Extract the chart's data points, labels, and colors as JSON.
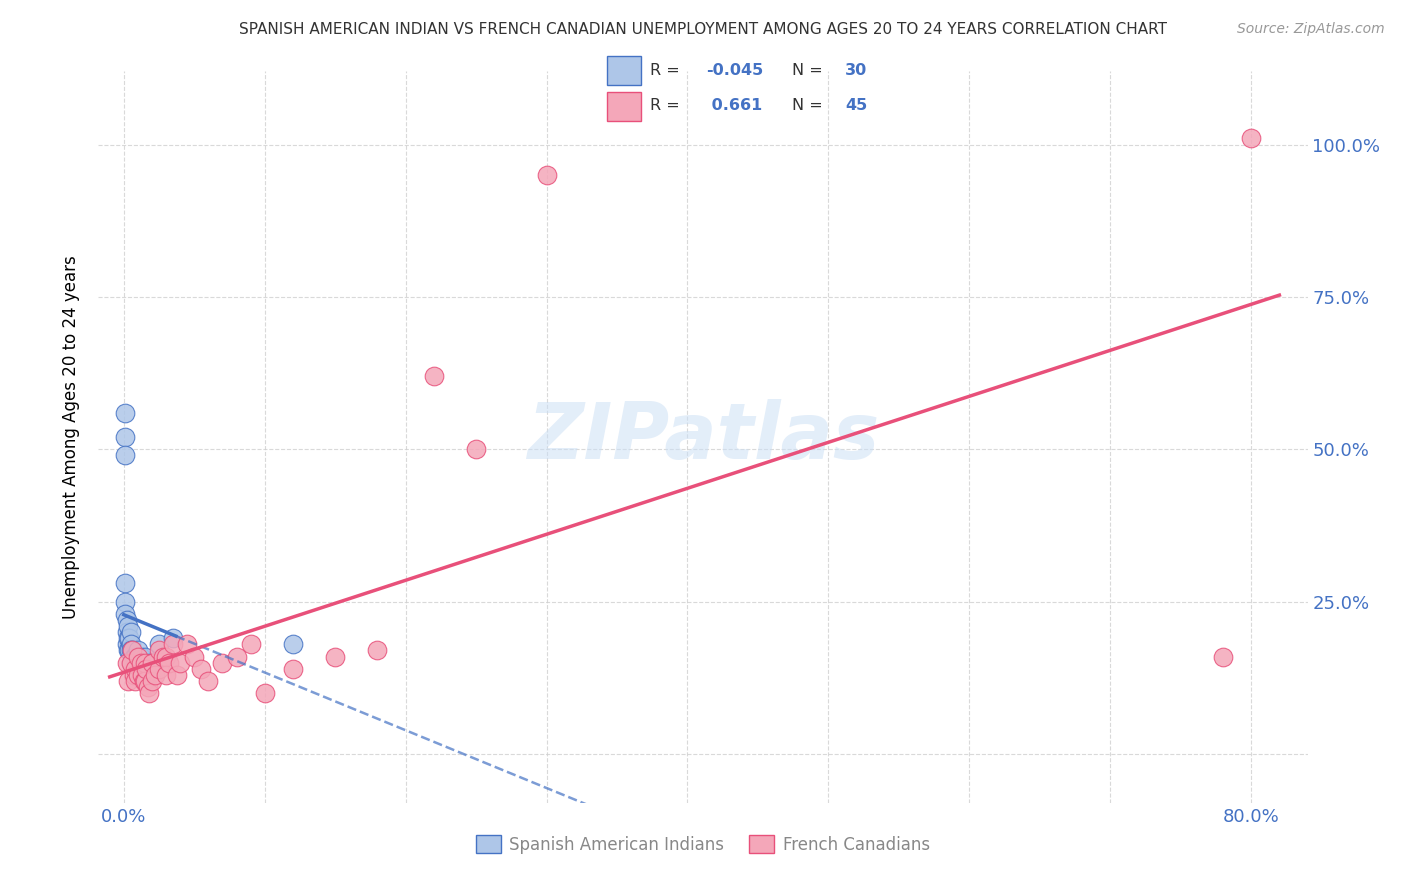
{
  "title": "SPANISH AMERICAN INDIAN VS FRENCH CANADIAN UNEMPLOYMENT AMONG AGES 20 TO 24 YEARS CORRELATION CHART",
  "source": "Source: ZipAtlas.com",
  "accent_color": "#4472c4",
  "ylabel": "Unemployment Among Ages 20 to 24 years",
  "xlim": [
    -0.018,
    0.84
  ],
  "ylim": [
    -0.08,
    1.12
  ],
  "xtick_positions": [
    0.0,
    0.1,
    0.2,
    0.3,
    0.4,
    0.5,
    0.6,
    0.7,
    0.8
  ],
  "xtick_labels": [
    "0.0%",
    "",
    "",
    "",
    "",
    "",
    "",
    "",
    "80.0%"
  ],
  "ytick_positions": [
    0.0,
    0.25,
    0.5,
    0.75,
    1.0
  ],
  "ytick_labels_right": [
    "",
    "25.0%",
    "50.0%",
    "75.0%",
    "100.0%"
  ],
  "blue_scatter_x": [
    0.001,
    0.001,
    0.001,
    0.001,
    0.001,
    0.001,
    0.002,
    0.002,
    0.002,
    0.003,
    0.003,
    0.003,
    0.004,
    0.004,
    0.005,
    0.005,
    0.005,
    0.005,
    0.006,
    0.007,
    0.008,
    0.009,
    0.01,
    0.012,
    0.015,
    0.018,
    0.02,
    0.025,
    0.035,
    0.12
  ],
  "blue_scatter_y": [
    0.56,
    0.52,
    0.49,
    0.28,
    0.25,
    0.23,
    0.22,
    0.2,
    0.18,
    0.21,
    0.19,
    0.17,
    0.19,
    0.17,
    0.2,
    0.18,
    0.17,
    0.15,
    0.17,
    0.16,
    0.16,
    0.15,
    0.17,
    0.16,
    0.16,
    0.15,
    0.15,
    0.18,
    0.19,
    0.18
  ],
  "pink_scatter_x": [
    0.002,
    0.003,
    0.005,
    0.006,
    0.007,
    0.008,
    0.008,
    0.01,
    0.01,
    0.012,
    0.013,
    0.014,
    0.015,
    0.015,
    0.016,
    0.017,
    0.018,
    0.02,
    0.02,
    0.022,
    0.025,
    0.025,
    0.028,
    0.03,
    0.03,
    0.032,
    0.035,
    0.038,
    0.04,
    0.045,
    0.05,
    0.055,
    0.06,
    0.07,
    0.08,
    0.09,
    0.1,
    0.12,
    0.15,
    0.18,
    0.22,
    0.25,
    0.3,
    0.8,
    0.78
  ],
  "pink_scatter_y": [
    0.15,
    0.12,
    0.15,
    0.17,
    0.13,
    0.14,
    0.12,
    0.16,
    0.13,
    0.15,
    0.13,
    0.12,
    0.15,
    0.12,
    0.14,
    0.11,
    0.1,
    0.15,
    0.12,
    0.13,
    0.17,
    0.14,
    0.16,
    0.16,
    0.13,
    0.15,
    0.18,
    0.13,
    0.15,
    0.18,
    0.16,
    0.14,
    0.12,
    0.15,
    0.16,
    0.18,
    0.1,
    0.14,
    0.16,
    0.17,
    0.62,
    0.5,
    0.95,
    1.01,
    0.16
  ],
  "blue_line_color": "#4472c4",
  "pink_line_color": "#e8507a",
  "blue_scatter_color": "#aec6e8",
  "pink_scatter_color": "#f4a7b9",
  "watermark": "ZIPatlas",
  "background_color": "#ffffff",
  "grid_color": "#d0d0d0",
  "legend_items": [
    {
      "label": "R = -0.045  N = 30",
      "color_face": "#aec6e8",
      "color_edge": "#4472c4"
    },
    {
      "label": "R =  0.661  N = 45",
      "color_face": "#f4a7b9",
      "color_edge": "#e8507a"
    }
  ],
  "bottom_legend": [
    "Spanish American Indians",
    "French Canadians"
  ]
}
